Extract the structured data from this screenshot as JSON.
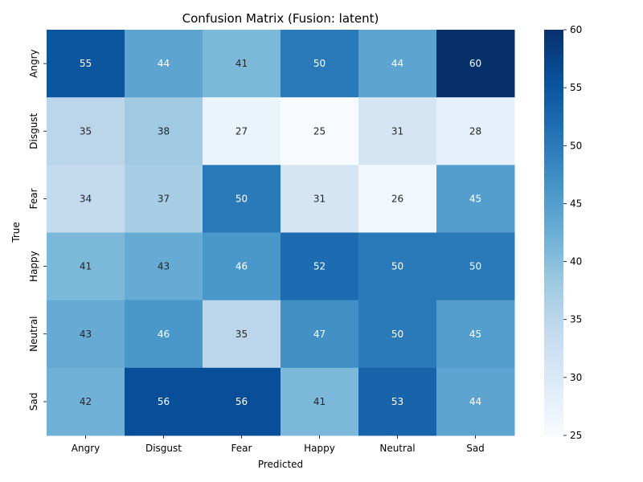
{
  "chart_data": {
    "type": "heatmap",
    "title": "Confusion Matrix (Fusion: latent)",
    "xlabel": "Predicted",
    "ylabel": "True",
    "x_categories": [
      "Angry",
      "Disgust",
      "Fear",
      "Happy",
      "Neutral",
      "Sad"
    ],
    "y_categories": [
      "Angry",
      "Disgust",
      "Fear",
      "Happy",
      "Neutral",
      "Sad"
    ],
    "values": [
      [
        55,
        44,
        41,
        50,
        44,
        60
      ],
      [
        35,
        38,
        27,
        25,
        31,
        28
      ],
      [
        34,
        37,
        50,
        31,
        26,
        45
      ],
      [
        41,
        43,
        46,
        52,
        50,
        50
      ],
      [
        43,
        46,
        35,
        47,
        50,
        45
      ],
      [
        42,
        56,
        56,
        41,
        53,
        44
      ]
    ],
    "colormap": "Blues",
    "vmin": 25,
    "vmax": 60,
    "colorbar_ticks": [
      25,
      30,
      35,
      40,
      45,
      50,
      55,
      60
    ],
    "annotations": true
  }
}
